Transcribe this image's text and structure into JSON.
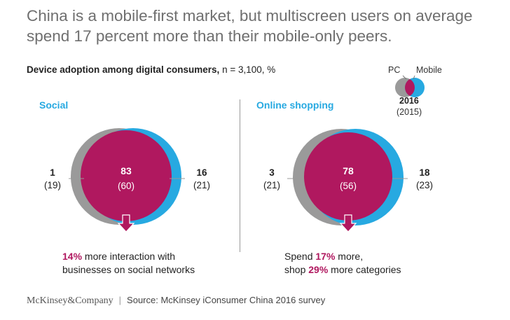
{
  "title": "China is a mobile-first market, but multiscreen users on average spend 17 percent more than their mobile-only peers.",
  "subtitle": {
    "bold": "Device adoption among digital consumers,",
    "rest": " n = 3,100, %"
  },
  "legend": {
    "pc_label": "PC",
    "mobile_label": "Mobile",
    "year": "2016",
    "prev_year": "(2015)"
  },
  "colors": {
    "pc": "#9a9a9a",
    "mobile": "#27a9e1",
    "overlap": "#b0185f",
    "heading": "#27a9e1"
  },
  "chart_data": [
    {
      "type": "venn",
      "title": "Social",
      "sets": [
        "PC",
        "Mobile"
      ],
      "pc_only": {
        "2016": 1,
        "2015": 19
      },
      "both": {
        "2016": 83,
        "2015": 60
      },
      "mobile_only": {
        "2016": 16,
        "2015": 21
      },
      "labels": {
        "pc_only": "1",
        "pc_only_prev": "(19)",
        "both": "83",
        "both_prev": "(60)",
        "mobile_only": "16",
        "mobile_only_prev": "(21)"
      },
      "note": {
        "highlight": "14%",
        "line1_rest": " more interaction with",
        "line2": "businesses on social networks"
      }
    },
    {
      "type": "venn",
      "title": "Online shopping",
      "sets": [
        "PC",
        "Mobile"
      ],
      "pc_only": {
        "2016": 3,
        "2015": 21
      },
      "both": {
        "2016": 78,
        "2015": 56
      },
      "mobile_only": {
        "2016": 18,
        "2015": 23
      },
      "labels": {
        "pc_only": "3",
        "pc_only_prev": "(21)",
        "both": "78",
        "both_prev": "(56)",
        "mobile_only": "18",
        "mobile_only_prev": "(23)"
      },
      "note": {
        "line1_pre": "Spend ",
        "line1_highlight": "17%",
        "line1_post": " more,",
        "line2_pre": "shop ",
        "line2_highlight": "29%",
        "line2_post": " more categories"
      }
    }
  ],
  "footer": {
    "brand": "McKinsey&Company",
    "separator": "|",
    "source": "Source: McKinsey iConsumer China 2016 survey"
  }
}
